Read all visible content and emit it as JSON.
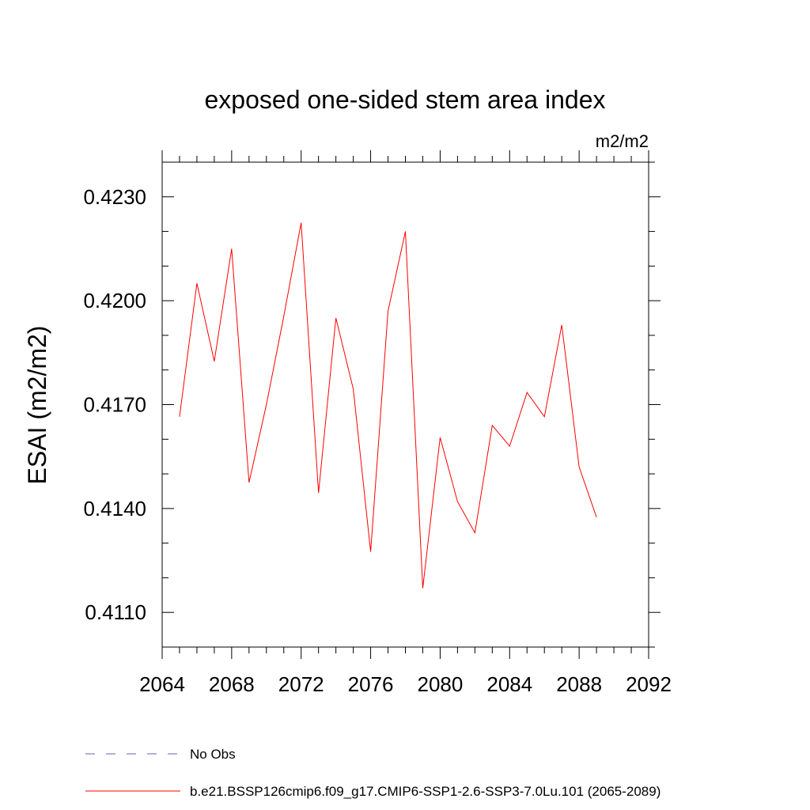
{
  "chart_data": {
    "type": "line",
    "title": "exposed one-sided stem area index",
    "units_label": "m2/m2",
    "ylabel": "ESAI  (m2/m2)",
    "xlabel": "",
    "xlim": [
      2064,
      2092
    ],
    "ylim": [
      0.41,
      0.424
    ],
    "x_ticks": [
      "2064",
      "2068",
      "2072",
      "2076",
      "2080",
      "2084",
      "2088",
      "2092"
    ],
    "y_ticks": [
      "0.4110",
      "0.4140",
      "0.4170",
      "0.4200",
      "0.4230"
    ],
    "x_tick_values": [
      2064,
      2068,
      2072,
      2076,
      2080,
      2084,
      2088,
      2092
    ],
    "y_tick_values": [
      0.411,
      0.414,
      0.417,
      0.42,
      0.423
    ],
    "series": [
      {
        "name": "b.e21.BSSP126cmip6.f09_g17.CMIP6-SSP1-2.6-SSP3-7.0Lu.101 (2065-2089)",
        "color": "#ff0000",
        "x": [
          2065,
          2066,
          2067,
          2068,
          2069,
          2070,
          2071,
          2072,
          2073,
          2074,
          2075,
          2076,
          2077,
          2078,
          2079,
          2080,
          2081,
          2082,
          2083,
          2084,
          2085,
          2086,
          2087,
          2088,
          2089
        ],
        "values": [
          0.41665,
          0.4205,
          0.41825,
          0.4215,
          0.41475,
          0.417,
          0.41955,
          0.42225,
          0.41445,
          0.4195,
          0.41745,
          0.41275,
          0.4197,
          0.422,
          0.4117,
          0.41605,
          0.4142,
          0.4133,
          0.4164,
          0.4158,
          0.41735,
          0.41665,
          0.4193,
          0.4152,
          0.41375
        ]
      }
    ],
    "legend": [
      {
        "label": "No Obs",
        "style": "dashed",
        "color": "#6f5fa8"
      },
      {
        "label": "b.e21.BSSP126cmip6.f09_g17.CMIP6-SSP1-2.6-SSP3-7.0Lu.101 (2065-2089)",
        "style": "solid",
        "color": "#ff0000"
      }
    ],
    "grid": false,
    "legend_position": "bottom"
  }
}
